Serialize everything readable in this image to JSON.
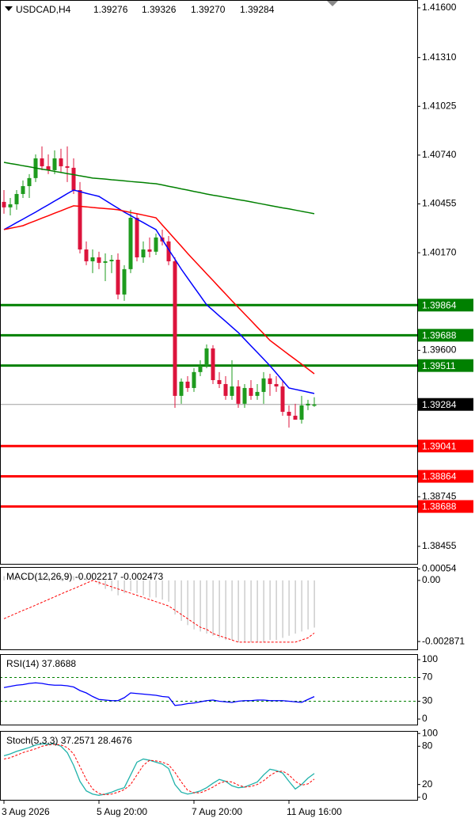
{
  "chart_data": [
    {
      "type": "candlestick",
      "title": "USDCAD,H4",
      "header_values": [
        "1.39276",
        "1.39326",
        "1.39270",
        "1.39284"
      ],
      "categories": [
        "3 Aug 2026",
        null,
        null,
        null,
        null,
        null,
        null,
        null,
        null,
        null,
        null,
        null,
        null,
        null,
        null,
        "5 Aug 20:00",
        null,
        null,
        null,
        null,
        null,
        null,
        null,
        null,
        null,
        null,
        null,
        null,
        null,
        null,
        "7 Aug 20:00",
        null,
        null,
        null,
        null,
        null,
        null,
        null,
        null,
        null,
        null,
        null,
        null,
        null,
        null,
        "11 Aug 16:00",
        null,
        null,
        null,
        null
      ],
      "open": [
        1.40467,
        1.40435,
        1.40453,
        1.40513,
        1.40559,
        1.40606,
        1.40721,
        1.40675,
        1.40652,
        1.40721,
        1.40675,
        1.40666,
        1.40536,
        1.40189,
        1.4012,
        1.40143,
        1.40111,
        1.4012,
        1.40129,
        1.39926,
        1.40074,
        1.40374,
        1.40143,
        1.40189,
        1.40176,
        1.40259,
        1.40236,
        1.4012,
        1.39334,
        1.39417,
        1.3938,
        1.39473,
        1.3951,
        1.39611,
        1.39426,
        1.39403,
        1.39334,
        1.39389,
        1.39288,
        1.3938,
        1.39334,
        1.39357,
        1.39436,
        1.39403,
        1.39389,
        1.39241,
        1.39218,
        1.39195,
        1.39278,
        1.39276
      ],
      "high": [
        1.40536,
        1.4049,
        1.40536,
        1.40592,
        1.40629,
        1.40744,
        1.40791,
        1.40744,
        1.40768,
        1.40777,
        1.40791,
        1.40721,
        1.40583,
        1.40236,
        1.40189,
        1.40176,
        1.40166,
        1.40157,
        1.40166,
        1.40097,
        1.40421,
        1.40398,
        1.40236,
        1.40259,
        1.40282,
        1.40305,
        1.40268,
        1.40143,
        1.39436,
        1.39449,
        1.39496,
        1.39542,
        1.39634,
        1.3963,
        1.39473,
        1.39449,
        1.39542,
        1.39426,
        1.39403,
        1.39426,
        1.39403,
        1.39473,
        1.39463,
        1.39449,
        1.39426,
        1.39278,
        1.39288,
        1.39334,
        1.39311,
        1.39326
      ],
      "low": [
        1.40398,
        1.40388,
        1.40421,
        1.4049,
        1.4049,
        1.40583,
        1.40652,
        1.40629,
        1.40629,
        1.40638,
        1.40583,
        1.40513,
        1.40166,
        1.40097,
        1.40051,
        1.40074,
        1.40004,
        1.40051,
        1.39898,
        1.39889,
        1.40051,
        1.4012,
        1.40111,
        1.40143,
        1.40157,
        1.40213,
        1.40097,
        1.39264,
        1.39288,
        1.39357,
        1.39357,
        1.39449,
        1.39496,
        1.39403,
        1.3938,
        1.39311,
        1.39311,
        1.39264,
        1.39264,
        1.39311,
        1.39311,
        1.39288,
        1.39334,
        1.39357,
        1.39218,
        1.39149,
        1.39195,
        1.39172,
        1.39251,
        1.3927
      ],
      "close": [
        1.40435,
        1.40453,
        1.40513,
        1.40559,
        1.40606,
        1.40721,
        1.40675,
        1.40652,
        1.40721,
        1.40675,
        1.40666,
        1.40536,
        1.40189,
        1.4012,
        1.40143,
        1.40111,
        1.4012,
        1.40129,
        1.39926,
        1.40074,
        1.40374,
        1.40143,
        1.40189,
        1.40176,
        1.40259,
        1.40236,
        1.4012,
        1.39334,
        1.39417,
        1.3938,
        1.39473,
        1.3951,
        1.39611,
        1.39426,
        1.39403,
        1.39334,
        1.39389,
        1.39288,
        1.3938,
        1.39334,
        1.39357,
        1.39436,
        1.39403,
        1.39389,
        1.39241,
        1.39218,
        1.39195,
        1.39278,
        1.39288,
        1.39284
      ],
      "bull_color": "#1e9b1e",
      "bear_color": "#dc143c",
      "series": [
        {
          "color": "#0000ff",
          "values": [
            1.40305,
            1.40325,
            1.40346,
            1.40366,
            1.40387,
            1.40407,
            1.40429,
            1.4045,
            1.40472,
            1.40493,
            1.40515,
            1.40536,
            1.40527,
            1.40517,
            1.40508,
            1.40499,
            1.40476,
            1.40453,
            1.4043,
            1.40407,
            1.40387,
            1.40366,
            1.40346,
            1.40325,
            1.40305,
            1.40247,
            1.40189,
            1.40132,
            1.40074,
            1.40022,
            1.3997,
            1.39918,
            1.39866,
            1.39834,
            1.39801,
            1.39769,
            1.39736,
            1.39704,
            1.39665,
            1.39626,
            1.39588,
            1.39549,
            1.3951,
            1.39467,
            1.39423,
            1.3938,
            1.39372,
            1.39364,
            1.39356,
            1.39348
          ]
        },
        {
          "color": "#ff0000",
          "values": [
            1.40305,
            1.40313,
            1.4032,
            1.40328,
            1.40343,
            1.40357,
            1.40372,
            1.40386,
            1.40401,
            1.40415,
            1.4043,
            1.40444,
            1.40441,
            1.40438,
            1.40434,
            1.40431,
            1.40428,
            1.40425,
            1.40421,
            1.40413,
            1.40405,
            1.40398,
            1.4039,
            1.40382,
            1.40374,
            1.40332,
            1.40291,
            1.40249,
            1.40208,
            1.40166,
            1.40126,
            1.40087,
            1.40047,
            1.40008,
            1.39968,
            1.39929,
            1.39889,
            1.39851,
            1.39812,
            1.39774,
            1.39735,
            1.39697,
            1.39658,
            1.3963,
            1.39602,
            1.39574,
            1.39547,
            1.39519,
            1.39491,
            1.39463
          ]
        },
        {
          "color": "#008000",
          "values": [
            1.40698,
            1.40691,
            1.40685,
            1.40678,
            1.40672,
            1.40665,
            1.40658,
            1.40652,
            1.40645,
            1.40639,
            1.40632,
            1.40626,
            1.40619,
            1.40613,
            1.40606,
            1.40603,
            1.406,
            1.40596,
            1.40593,
            1.4059,
            1.40586,
            1.40583,
            1.4058,
            1.40576,
            1.40573,
            1.40566,
            1.40558,
            1.40551,
            1.40543,
            1.40536,
            1.40528,
            1.40521,
            1.40513,
            1.40506,
            1.405,
            1.40493,
            1.40487,
            1.4048,
            1.40474,
            1.40467,
            1.4046,
            1.40453,
            1.40446,
            1.40439,
            1.40432,
            1.40426,
            1.40419,
            1.40412,
            1.40405,
            1.40398
          ]
        }
      ],
      "levels": [
        {
          "value": 1.39864,
          "color": "#008000"
        },
        {
          "value": 1.39688,
          "color": "#008000"
        },
        {
          "value": 1.39511,
          "color": "#008000"
        },
        {
          "value": 1.39041,
          "color": "#ff0000"
        },
        {
          "value": 1.38864,
          "color": "#ff0000"
        },
        {
          "value": 1.38688,
          "color": "#ff0000"
        }
      ],
      "current_price": 1.39284,
      "ylim": [
        1.38353,
        1.41646
      ],
      "yticks": [
        {
          "value": 1.416,
          "label": "1.41600"
        },
        {
          "value": 1.4131,
          "label": "1.41310"
        },
        {
          "value": 1.41025,
          "label": "1.41025"
        },
        {
          "value": 1.4074,
          "label": "1.40740"
        },
        {
          "value": 1.40455,
          "label": "1.40455"
        },
        {
          "value": 1.4017,
          "label": "1.40170"
        },
        {
          "value": 1.396,
          "label": "1.39600"
        },
        {
          "value": 1.38745,
          "label": "1.38745"
        },
        {
          "value": 1.38455,
          "label": "1.38455"
        }
      ]
    },
    {
      "type": "line",
      "title": "MACD(12,26,9) -0.002217 -0.002473",
      "series": [
        {
          "color": "#c0c0c0",
          "style": "bar",
          "values": [
            0.0002,
            0.0002,
            0.0002,
            0.0002,
            0.0002,
            0.0002,
            0.0002,
            0.0002,
            0.0002,
            0.0002,
            0.0002,
            0.0002,
            0.0002,
            0.0002,
            0.0002,
            -0.0002,
            -0.0004,
            -0.0005,
            -0.0007,
            -0.0006,
            -0.0005,
            -0.0006,
            -0.0007,
            -0.0008,
            -0.0008,
            -0.0009,
            -0.001,
            -0.0016,
            -0.0019,
            -0.0021,
            -0.0023,
            -0.0024,
            -0.0025,
            -0.0026,
            -0.0027,
            -0.0028,
            -0.0028,
            -0.0029,
            -0.0029,
            -0.0029,
            -0.0029,
            -0.0029,
            -0.0028,
            -0.0028,
            -0.0027,
            -0.0026,
            -0.0025,
            -0.0024,
            -0.0023,
            -0.002217
          ]
        },
        {
          "color": "#ff0000",
          "style": "dashed",
          "values": [
            -0.0018,
            -0.00167,
            -0.00154,
            -0.00141,
            -0.00129,
            -0.00116,
            -0.00103,
            -0.0009,
            -0.00077,
            -0.00064,
            -0.00051,
            -0.00039,
            -0.00026,
            -0.00013,
            0,
            -0.0001,
            -0.0002,
            -0.0003,
            -0.0004,
            -0.0005,
            -0.0006,
            -0.0007,
            -0.0008,
            -0.0009,
            -0.001,
            -0.0011,
            -0.0012,
            -0.0014,
            -0.0016,
            -0.0018,
            -0.002,
            -0.0022,
            -0.0023,
            -0.0025,
            -0.0026,
            -0.0027,
            -0.0028,
            -0.0029,
            -0.0029,
            -0.0029,
            -0.0029,
            -0.0029,
            -0.0029,
            -0.0029,
            -0.0029,
            -0.0029,
            -0.0029,
            -0.0028,
            -0.0027,
            -0.002473
          ]
        }
      ],
      "ylim": [
        -0.00324,
        0.00063
      ],
      "yticks": [
        0.00054,
        {
          "value": 0,
          "label": "0.00"
        },
        -0.002871
      ]
    },
    {
      "type": "line",
      "title": "RSI(14) 37.8688",
      "series": [
        {
          "color": "#0000ff",
          "style": "solid",
          "values": [
            53,
            55,
            57,
            58,
            60,
            61,
            60,
            58,
            57,
            57,
            56,
            54,
            48,
            44,
            38,
            33,
            32,
            31,
            31,
            36,
            44,
            43,
            42,
            41,
            40,
            38,
            37,
            23,
            24,
            26,
            27,
            29,
            31,
            32,
            30,
            29,
            28,
            30,
            31,
            31,
            32,
            32,
            31,
            31,
            31,
            30,
            29,
            28,
            33,
            37.8688
          ]
        }
      ],
      "levels": [
        {
          "value": 70,
          "color": "#008000"
        },
        {
          "value": 30,
          "color": "#008000"
        }
      ],
      "ylim": [
        -9.3,
        109.3
      ],
      "yticks": [
        100,
        70,
        30,
        0
      ]
    },
    {
      "type": "line",
      "title": "Stoch(5,3,3) 37.2571 28.4676",
      "series": [
        {
          "color": "#20b2aa",
          "style": "solid",
          "values": [
            65,
            68,
            72,
            75,
            78,
            82,
            84,
            83,
            84,
            80,
            70,
            50,
            25,
            10,
            5,
            3,
            5,
            8,
            12,
            15,
            35,
            55,
            60,
            58,
            55,
            52,
            45,
            20,
            8,
            5,
            7,
            10,
            15,
            22,
            28,
            25,
            18,
            15,
            16,
            20,
            24,
            35,
            44,
            42,
            38,
            25,
            13,
            20,
            30,
            37.2571
          ]
        },
        {
          "color": "#ff0000",
          "style": "dashed",
          "values": [
            60,
            62,
            66,
            70,
            73,
            76,
            80,
            82,
            83,
            82,
            78,
            68,
            48,
            28,
            13,
            6,
            4,
            5,
            8,
            12,
            20,
            35,
            50,
            58,
            57,
            55,
            51,
            39,
            24,
            11,
            7,
            7,
            11,
            16,
            22,
            25,
            24,
            19,
            16,
            17,
            20,
            26,
            34,
            40,
            41,
            35,
            25,
            19,
            21,
            28.4676
          ]
        }
      ],
      "ylim": [
        -4,
        104
      ],
      "yticks": [
        100,
        80,
        20,
        0
      ]
    }
  ]
}
